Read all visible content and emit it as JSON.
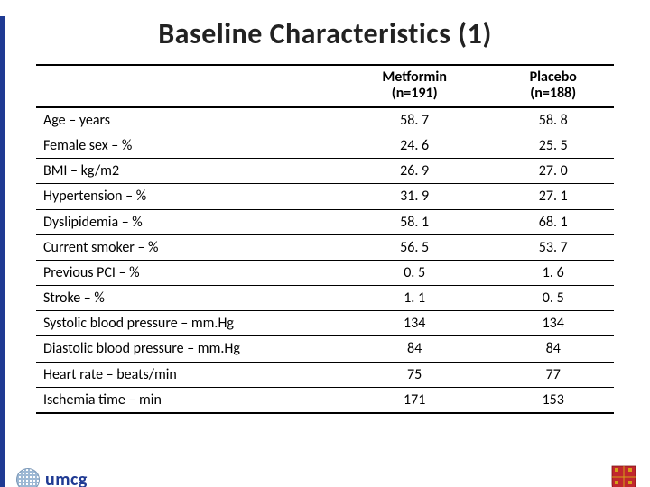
{
  "title": "Baseline Characteristics (1)",
  "table": {
    "columns": {
      "label": "",
      "col1_name": "Metformin",
      "col1_n": "(n=191)",
      "col2_name": "Placebo",
      "col2_n": "(n=188)"
    },
    "rows": [
      {
        "label": "Age – years",
        "c1": "58. 7",
        "c2": "58. 8"
      },
      {
        "label": "Female sex – %",
        "c1": "24. 6",
        "c2": "25. 5"
      },
      {
        "label": "BMI – kg/m2",
        "c1": "26. 9",
        "c2": "27. 0"
      },
      {
        "label": "Hypertension – %",
        "c1": "31. 9",
        "c2": "27. 1"
      },
      {
        "label": "Dyslipidemia – %",
        "c1": "58. 1",
        "c2": "68. 1"
      },
      {
        "label": "Current smoker – %",
        "c1": "56. 5",
        "c2": "53. 7"
      },
      {
        "label": "Previous PCI – %",
        "c1": "0. 5",
        "c2": "1. 6"
      },
      {
        "label": "Stroke – %",
        "c1": "1. 1",
        "c2": "0. 5"
      },
      {
        "label": "Systolic blood pressure – mm.Hg",
        "c1": "134",
        "c2": "134"
      },
      {
        "label": "Diastolic blood pressure – mm.Hg",
        "c1": "84",
        "c2": "84"
      },
      {
        "label": "Heart rate – beats/min",
        "c1": "75",
        "c2": "77"
      },
      {
        "label": "Ischemia time – min",
        "c1": "171",
        "c2": "153"
      }
    ],
    "font_size_body": 16,
    "font_size_title": 32,
    "border_color": "#000000",
    "col_widths": [
      "52%",
      "24%",
      "24%"
    ]
  },
  "footer": {
    "org_text": "umcg",
    "org_color": "#1f3a93",
    "shield_colors": {
      "red": "#c1272d",
      "gold": "#d4a017"
    }
  },
  "background_color": "#ffffff"
}
